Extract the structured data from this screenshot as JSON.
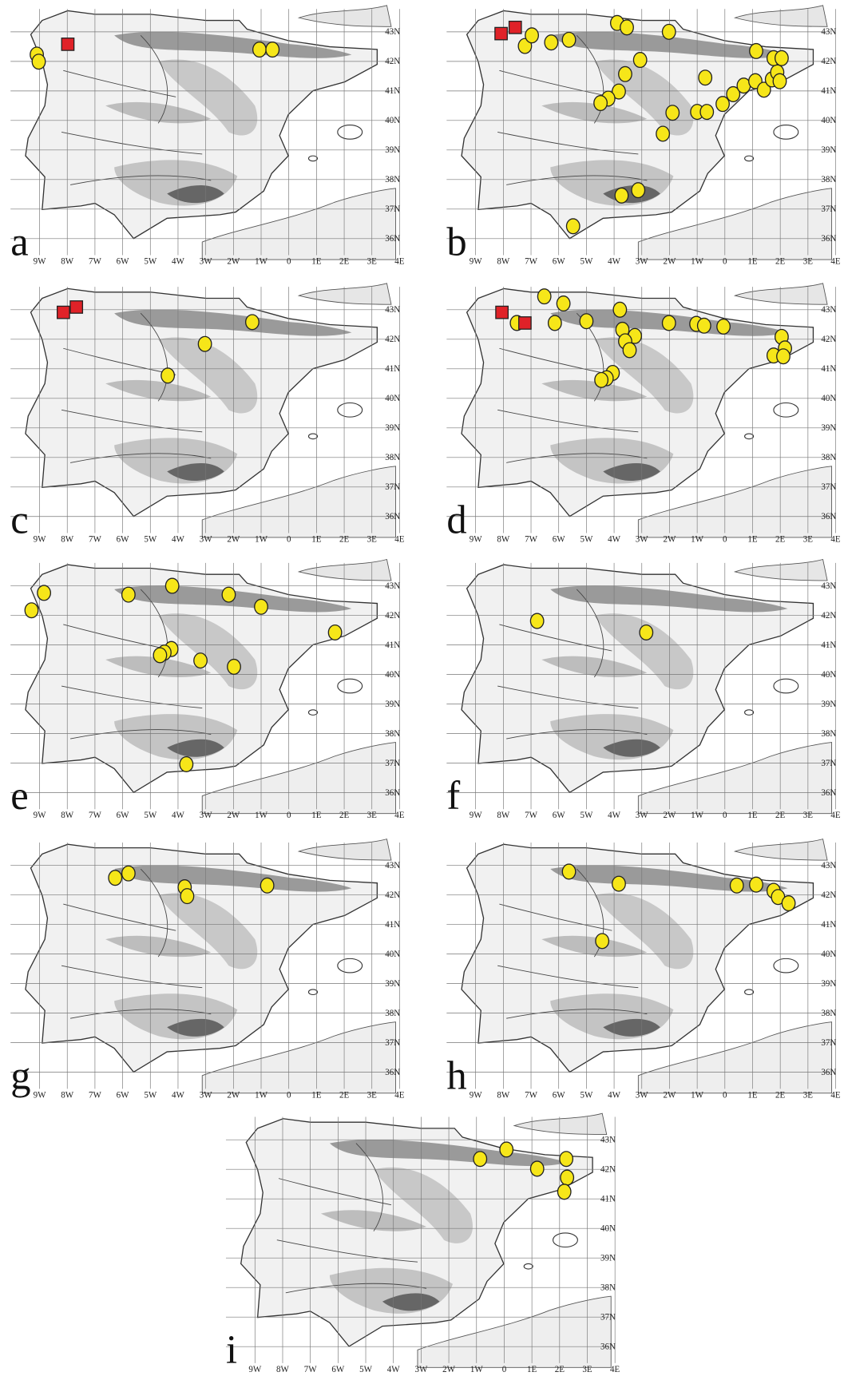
{
  "lon_ticks": [
    {
      "value": -9,
      "label": "9W"
    },
    {
      "value": -8,
      "label": "8W"
    },
    {
      "value": -7,
      "label": "7W"
    },
    {
      "value": -6,
      "label": "6W"
    },
    {
      "value": -5,
      "label": "5W"
    },
    {
      "value": -4,
      "label": "4W"
    },
    {
      "value": -3,
      "label": "3W"
    },
    {
      "value": -2,
      "label": "2W"
    },
    {
      "value": -1,
      "label": "1W"
    },
    0,
    {
      "value": 1,
      "label": "1E"
    },
    {
      "value": 2,
      "label": "2E"
    },
    {
      "value": 3,
      "label": "3E"
    },
    {
      "value": 4,
      "label": "4E"
    }
  ],
  "lat_ticks": [
    {
      "value": 43,
      "label": "43N"
    },
    {
      "value": 42,
      "label": "42N"
    },
    {
      "value": 41,
      "label": "41N"
    },
    {
      "value": 40,
      "label": "40N"
    },
    {
      "value": 39,
      "label": "39N"
    },
    {
      "value": 38,
      "label": "38N"
    },
    {
      "value": 37,
      "label": "37N"
    },
    {
      "value": 36,
      "label": "36N"
    }
  ],
  "marker_colors": {
    "circle": "#f6e619",
    "square": "#e02228"
  },
  "panels": [
    {
      "label": "a",
      "markers": [
        {
          "kind": "circle",
          "lon": -9.1,
          "lat": 42.23
        },
        {
          "kind": "circle",
          "lon": -9.03,
          "lat": 41.99
        },
        {
          "kind": "circle",
          "lon": -1.06,
          "lat": 42.4
        },
        {
          "kind": "circle",
          "lon": -0.59,
          "lat": 42.4
        },
        {
          "kind": "square",
          "lon": -7.98,
          "lat": 42.58
        }
      ]
    },
    {
      "label": "b",
      "markers": [
        {
          "kind": "square",
          "lon": -8.08,
          "lat": 42.94
        },
        {
          "kind": "square",
          "lon": -7.57,
          "lat": 43.15
        },
        {
          "kind": "circle",
          "lon": -7.22,
          "lat": 42.52
        },
        {
          "kind": "circle",
          "lon": -6.97,
          "lat": 42.88
        },
        {
          "kind": "circle",
          "lon": -6.27,
          "lat": 42.64
        },
        {
          "kind": "circle",
          "lon": -5.63,
          "lat": 42.73
        },
        {
          "kind": "circle",
          "lon": -3.89,
          "lat": 43.3
        },
        {
          "kind": "circle",
          "lon": -3.54,
          "lat": 43.15
        },
        {
          "kind": "circle",
          "lon": -2.02,
          "lat": 43.0
        },
        {
          "kind": "circle",
          "lon": -3.06,
          "lat": 42.05
        },
        {
          "kind": "circle",
          "lon": -3.6,
          "lat": 41.57
        },
        {
          "kind": "circle",
          "lon": -3.83,
          "lat": 40.98
        },
        {
          "kind": "circle",
          "lon": -4.21,
          "lat": 40.74
        },
        {
          "kind": "circle",
          "lon": -4.49,
          "lat": 40.59
        },
        {
          "kind": "circle",
          "lon": -0.71,
          "lat": 41.45
        },
        {
          "kind": "circle",
          "lon": -1.89,
          "lat": 40.26
        },
        {
          "kind": "circle",
          "lon": -2.24,
          "lat": 39.55
        },
        {
          "kind": "circle",
          "lon": -1.0,
          "lat": 40.29
        },
        {
          "kind": "circle",
          "lon": -0.65,
          "lat": 40.29
        },
        {
          "kind": "circle",
          "lon": -0.08,
          "lat": 40.56
        },
        {
          "kind": "circle",
          "lon": 0.3,
          "lat": 40.89
        },
        {
          "kind": "circle",
          "lon": 0.68,
          "lat": 41.18
        },
        {
          "kind": "circle",
          "lon": 1.1,
          "lat": 41.33
        },
        {
          "kind": "circle",
          "lon": 1.41,
          "lat": 41.04
        },
        {
          "kind": "circle",
          "lon": 1.7,
          "lat": 41.39
        },
        {
          "kind": "circle",
          "lon": 1.89,
          "lat": 41.63
        },
        {
          "kind": "circle",
          "lon": 1.98,
          "lat": 41.33
        },
        {
          "kind": "circle",
          "lon": 1.76,
          "lat": 42.11
        },
        {
          "kind": "circle",
          "lon": 2.05,
          "lat": 42.11
        },
        {
          "kind": "circle",
          "lon": 1.13,
          "lat": 42.35
        },
        {
          "kind": "circle",
          "lon": -3.13,
          "lat": 37.64
        },
        {
          "kind": "circle",
          "lon": -3.73,
          "lat": 37.46
        },
        {
          "kind": "circle",
          "lon": -5.48,
          "lat": 36.42
        }
      ]
    },
    {
      "label": "c",
      "markers": [
        {
          "kind": "square",
          "lon": -8.14,
          "lat": 42.91
        },
        {
          "kind": "square",
          "lon": -7.67,
          "lat": 43.09
        },
        {
          "kind": "circle",
          "lon": -1.32,
          "lat": 42.58
        },
        {
          "kind": "circle",
          "lon": -3.03,
          "lat": 41.84
        },
        {
          "kind": "circle",
          "lon": -4.37,
          "lat": 40.77
        }
      ]
    },
    {
      "label": "d",
      "markers": [
        {
          "kind": "circle",
          "lon": -6.52,
          "lat": 43.45
        },
        {
          "kind": "circle",
          "lon": -5.83,
          "lat": 43.21
        },
        {
          "kind": "circle",
          "lon": -7.51,
          "lat": 42.55
        },
        {
          "kind": "circle",
          "lon": -6.14,
          "lat": 42.55
        },
        {
          "kind": "circle",
          "lon": -5.0,
          "lat": 42.61
        },
        {
          "kind": "circle",
          "lon": -3.79,
          "lat": 43.0
        },
        {
          "kind": "circle",
          "lon": -3.7,
          "lat": 42.32
        },
        {
          "kind": "circle",
          "lon": -3.25,
          "lat": 42.11
        },
        {
          "kind": "circle",
          "lon": -3.6,
          "lat": 41.93
        },
        {
          "kind": "circle",
          "lon": -3.44,
          "lat": 41.63
        },
        {
          "kind": "circle",
          "lon": -2.02,
          "lat": 42.55
        },
        {
          "kind": "circle",
          "lon": -1.03,
          "lat": 42.52
        },
        {
          "kind": "circle",
          "lon": -0.75,
          "lat": 42.46
        },
        {
          "kind": "circle",
          "lon": -0.05,
          "lat": 42.43
        },
        {
          "kind": "circle",
          "lon": 2.05,
          "lat": 42.08
        },
        {
          "kind": "circle",
          "lon": 2.17,
          "lat": 41.69
        },
        {
          "kind": "circle",
          "lon": 1.76,
          "lat": 41.45
        },
        {
          "kind": "circle",
          "lon": 2.11,
          "lat": 41.42
        },
        {
          "kind": "circle",
          "lon": -4.05,
          "lat": 40.86
        },
        {
          "kind": "circle",
          "lon": -4.27,
          "lat": 40.68
        },
        {
          "kind": "circle",
          "lon": -4.46,
          "lat": 40.62
        },
        {
          "kind": "square",
          "lon": -8.05,
          "lat": 42.91
        },
        {
          "kind": "square",
          "lon": -7.22,
          "lat": 42.55
        }
      ]
    },
    {
      "label": "e",
      "markers": [
        {
          "kind": "circle",
          "lon": -8.84,
          "lat": 42.76
        },
        {
          "kind": "circle",
          "lon": -9.29,
          "lat": 42.17
        },
        {
          "kind": "circle",
          "lon": -5.79,
          "lat": 42.7
        },
        {
          "kind": "circle",
          "lon": -4.21,
          "lat": 43.0
        },
        {
          "kind": "circle",
          "lon": -2.17,
          "lat": 42.7
        },
        {
          "kind": "circle",
          "lon": -1.0,
          "lat": 42.29
        },
        {
          "kind": "circle",
          "lon": 1.67,
          "lat": 41.42
        },
        {
          "kind": "circle",
          "lon": -4.24,
          "lat": 40.86
        },
        {
          "kind": "circle",
          "lon": -4.49,
          "lat": 40.74
        },
        {
          "kind": "circle",
          "lon": -4.65,
          "lat": 40.65
        },
        {
          "kind": "circle",
          "lon": -3.19,
          "lat": 40.47
        },
        {
          "kind": "circle",
          "lon": -1.98,
          "lat": 40.26
        },
        {
          "kind": "circle",
          "lon": -3.7,
          "lat": 36.96
        }
      ]
    },
    {
      "label": "f",
      "markers": [
        {
          "kind": "circle",
          "lon": -6.78,
          "lat": 41.81
        },
        {
          "kind": "circle",
          "lon": -2.84,
          "lat": 41.42
        }
      ]
    },
    {
      "label": "g",
      "markers": [
        {
          "kind": "circle",
          "lon": -6.27,
          "lat": 42.58
        },
        {
          "kind": "circle",
          "lon": -5.79,
          "lat": 42.73
        },
        {
          "kind": "circle",
          "lon": -3.76,
          "lat": 42.26
        },
        {
          "kind": "circle",
          "lon": -3.67,
          "lat": 41.96
        },
        {
          "kind": "circle",
          "lon": -0.78,
          "lat": 42.32
        }
      ]
    },
    {
      "label": "h",
      "markers": [
        {
          "kind": "circle",
          "lon": -5.63,
          "lat": 42.79
        },
        {
          "kind": "circle",
          "lon": -3.83,
          "lat": 42.38
        },
        {
          "kind": "circle",
          "lon": 0.43,
          "lat": 42.32
        },
        {
          "kind": "circle",
          "lon": 1.13,
          "lat": 42.35
        },
        {
          "kind": "circle",
          "lon": 1.76,
          "lat": 42.14
        },
        {
          "kind": "circle",
          "lon": 1.92,
          "lat": 41.93
        },
        {
          "kind": "circle",
          "lon": 2.3,
          "lat": 41.72
        },
        {
          "kind": "circle",
          "lon": -4.43,
          "lat": 40.44
        }
      ]
    },
    {
      "label": "i",
      "markers": [
        {
          "kind": "circle",
          "lon": -0.87,
          "lat": 42.35
        },
        {
          "kind": "circle",
          "lon": 0.08,
          "lat": 42.67
        },
        {
          "kind": "circle",
          "lon": 1.19,
          "lat": 42.02
        },
        {
          "kind": "circle",
          "lon": 2.24,
          "lat": 42.35
        },
        {
          "kind": "circle",
          "lon": 2.27,
          "lat": 41.72
        },
        {
          "kind": "circle",
          "lon": 2.17,
          "lat": 41.24
        }
      ]
    }
  ]
}
